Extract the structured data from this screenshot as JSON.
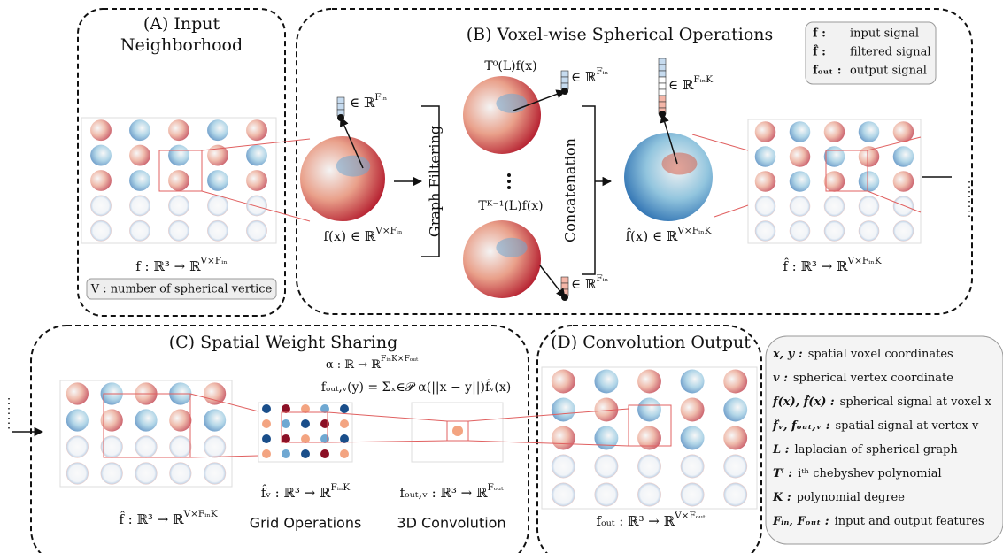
{
  "panel_a": {
    "title": [
      "(A) Input",
      "Neighborhood"
    ],
    "formula": {
      "base": "f : ℝ³ → ℝ",
      "sup": "V×Fᵢₙ"
    },
    "note": "V : number of spherical vertice"
  },
  "panel_b": {
    "title": "(B) Voxel-wise Spherical Operations",
    "legend": [
      {
        "symbol": "f :",
        "text": "input signal"
      },
      {
        "symbol": "f̂ :",
        "text": "filtered signal"
      },
      {
        "symbol": "fₒᵤₜ :",
        "text": "output signal"
      }
    ],
    "graph_filtering": "Graph Filtering",
    "concatenation": "Concatenation",
    "input_vector": {
      "base": "∈ ℝ",
      "sup": "Fᵢₙ"
    },
    "input_signal": {
      "base": "f(x) ∈ ℝ",
      "sup": "V×Fᵢₙ"
    },
    "first_term": "T⁰(L)f(x)",
    "first_vector": {
      "base": "∈ ℝ",
      "sup": "Fᵢₙ"
    },
    "last_term": "Tᴷ⁻¹(L)f(x)",
    "last_vector": {
      "base": "∈ ℝ",
      "sup": "Fᵢₙ"
    },
    "concat_vector": {
      "base": "∈ ℝ",
      "sup": "FᵢₙK"
    },
    "filtered_signal": {
      "base": "f̂(x) ∈ ℝ",
      "sup": "V×FᵢₙK"
    },
    "formula": {
      "base": "f̂ : ℝ³ → ℝ",
      "sup": "V×FᵢₙK"
    }
  },
  "panel_c": {
    "title": "(C) Spatial Weight Sharing",
    "alpha": {
      "base": "α : ℝ → ℝ",
      "sup": "FᵢₙK×Fₒᵤₜ"
    },
    "conv": "fₒᵤₜ,ᵥ(y) = Σₓ∈𝒫 α(||x − y||)f̂ᵥ(x)",
    "input_formula": {
      "base": "f̂ : ℝ³ → ℝ",
      "sup": "V×FᵢₙK"
    },
    "vertex_formula": {
      "base": "f̂ᵥ : ℝ³ → ℝ",
      "sup": "FᵢₙK"
    },
    "output_formula": {
      "base": "fₒᵤₜ,ᵥ : ℝ³ → ℝ",
      "sup": "Fₒᵤₜ"
    },
    "grid_caption": "Grid Operations",
    "conv_caption": "3D Convolution"
  },
  "panel_d": {
    "title": "(D) Convolution Output",
    "formula": {
      "base": "fₒᵤₜ : ℝ³ → ℝ",
      "sup": "V×Fₒᵤₜ"
    }
  },
  "glossary": [
    {
      "symbol": "x, y :",
      "text": "spatial voxel coordinates"
    },
    {
      "symbol": "v :",
      "text": "spherical vertex coordinate"
    },
    {
      "symbol": "f(x), f̂(x) :",
      "text": "spherical signal at voxel x"
    },
    {
      "symbol": "f̂ᵥ, fₒᵤₜ,ᵥ :",
      "text": "spatial signal at vertex v"
    },
    {
      "symbol": "L :",
      "text": "laplacian of spherical graph"
    },
    {
      "symbol": "Tⁱ :",
      "text": "iᵗʰ chebyshev polynomial"
    },
    {
      "symbol": "K :",
      "text": "polynomial degree"
    },
    {
      "symbol": "Fᵢₙ, Fₒᵤₜ :",
      "text": "input and output features"
    }
  ]
}
